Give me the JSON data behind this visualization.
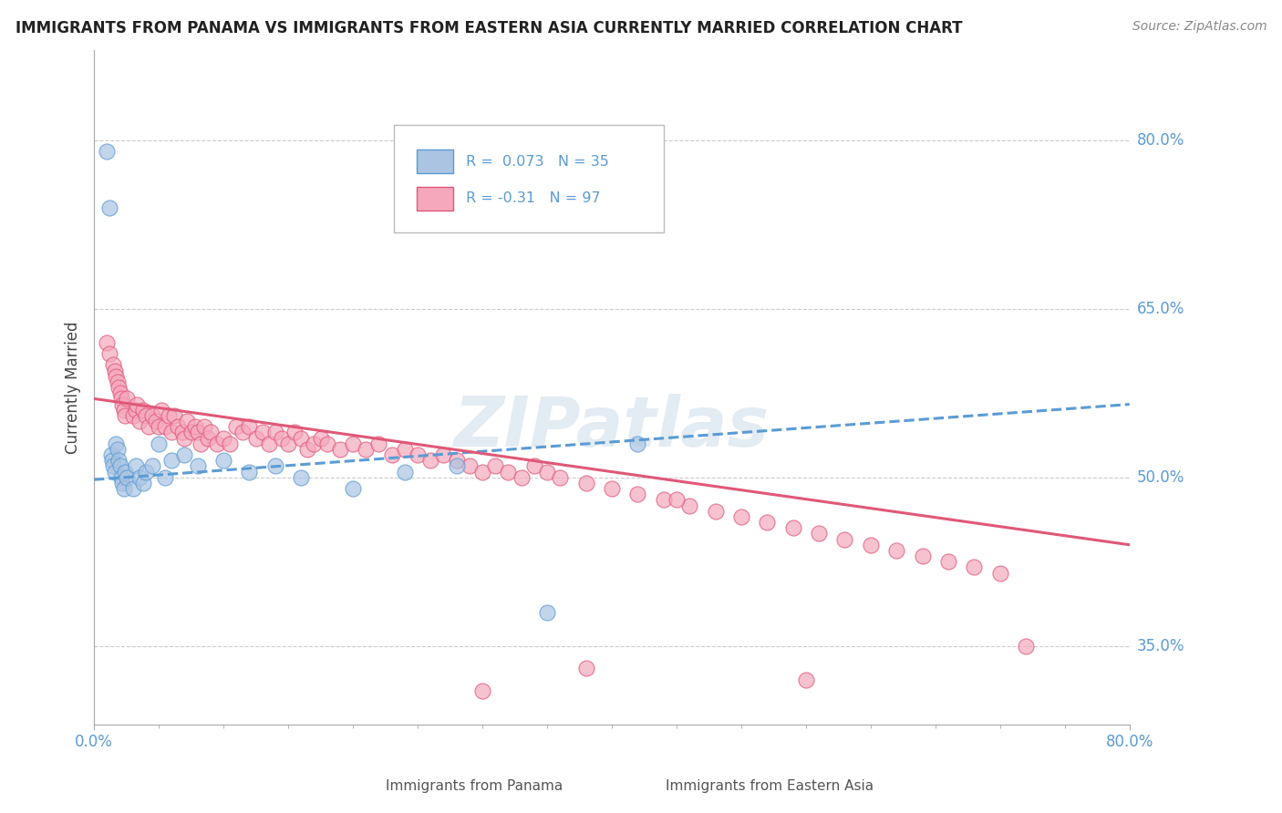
{
  "title": "IMMIGRANTS FROM PANAMA VS IMMIGRANTS FROM EASTERN ASIA CURRENTLY MARRIED CORRELATION CHART",
  "source_text": "Source: ZipAtlas.com",
  "ylabel": "Currently Married",
  "xlim": [
    0.0,
    0.8
  ],
  "ylim": [
    0.28,
    0.88
  ],
  "y_tick_values": [
    0.35,
    0.5,
    0.65,
    0.8
  ],
  "r_panama": 0.073,
  "n_panama": 35,
  "r_eastern_asia": -0.31,
  "n_eastern_asia": 97,
  "color_panama": "#aac4e2",
  "color_eastern_asia": "#f5a8bc",
  "line_color_panama": "#5b9bd5",
  "line_color_eastern_asia": "#e05878",
  "watermark": "ZIPatlas",
  "panama_x": [
    0.01,
    0.012,
    0.013,
    0.014,
    0.015,
    0.016,
    0.017,
    0.018,
    0.019,
    0.02,
    0.021,
    0.022,
    0.023,
    0.024,
    0.025,
    0.03,
    0.032,
    0.035,
    0.038,
    0.04,
    0.045,
    0.05,
    0.055,
    0.06,
    0.07,
    0.08,
    0.1,
    0.12,
    0.14,
    0.16,
    0.2,
    0.24,
    0.28,
    0.35,
    0.42
  ],
  "panama_y": [
    0.79,
    0.74,
    0.52,
    0.515,
    0.51,
    0.505,
    0.53,
    0.525,
    0.515,
    0.51,
    0.5,
    0.495,
    0.49,
    0.505,
    0.5,
    0.49,
    0.51,
    0.5,
    0.495,
    0.505,
    0.51,
    0.53,
    0.5,
    0.515,
    0.52,
    0.51,
    0.515,
    0.505,
    0.51,
    0.5,
    0.49,
    0.505,
    0.51,
    0.38,
    0.53
  ],
  "eastern_asia_x": [
    0.01,
    0.012,
    0.015,
    0.016,
    0.017,
    0.018,
    0.019,
    0.02,
    0.021,
    0.022,
    0.023,
    0.024,
    0.025,
    0.03,
    0.032,
    0.033,
    0.035,
    0.038,
    0.04,
    0.042,
    0.045,
    0.048,
    0.05,
    0.052,
    0.055,
    0.058,
    0.06,
    0.062,
    0.065,
    0.068,
    0.07,
    0.072,
    0.075,
    0.078,
    0.08,
    0.082,
    0.085,
    0.088,
    0.09,
    0.095,
    0.1,
    0.105,
    0.11,
    0.115,
    0.12,
    0.125,
    0.13,
    0.135,
    0.14,
    0.145,
    0.15,
    0.155,
    0.16,
    0.165,
    0.17,
    0.175,
    0.18,
    0.19,
    0.2,
    0.21,
    0.22,
    0.23,
    0.24,
    0.25,
    0.26,
    0.27,
    0.28,
    0.29,
    0.3,
    0.31,
    0.32,
    0.33,
    0.34,
    0.35,
    0.36,
    0.38,
    0.4,
    0.42,
    0.44,
    0.46,
    0.48,
    0.5,
    0.52,
    0.54,
    0.56,
    0.58,
    0.6,
    0.62,
    0.64,
    0.66,
    0.68,
    0.7,
    0.55,
    0.45,
    0.38,
    0.3,
    0.72
  ],
  "eastern_asia_y": [
    0.62,
    0.61,
    0.6,
    0.595,
    0.59,
    0.585,
    0.58,
    0.575,
    0.57,
    0.565,
    0.56,
    0.555,
    0.57,
    0.555,
    0.56,
    0.565,
    0.55,
    0.56,
    0.555,
    0.545,
    0.555,
    0.55,
    0.545,
    0.56,
    0.545,
    0.555,
    0.54,
    0.555,
    0.545,
    0.54,
    0.535,
    0.55,
    0.54,
    0.545,
    0.54,
    0.53,
    0.545,
    0.535,
    0.54,
    0.53,
    0.535,
    0.53,
    0.545,
    0.54,
    0.545,
    0.535,
    0.54,
    0.53,
    0.54,
    0.535,
    0.53,
    0.54,
    0.535,
    0.525,
    0.53,
    0.535,
    0.53,
    0.525,
    0.53,
    0.525,
    0.53,
    0.52,
    0.525,
    0.52,
    0.515,
    0.52,
    0.515,
    0.51,
    0.505,
    0.51,
    0.505,
    0.5,
    0.51,
    0.505,
    0.5,
    0.495,
    0.49,
    0.485,
    0.48,
    0.475,
    0.47,
    0.465,
    0.46,
    0.455,
    0.45,
    0.445,
    0.44,
    0.435,
    0.43,
    0.425,
    0.42,
    0.415,
    0.32,
    0.48,
    0.33,
    0.31,
    0.35
  ],
  "panama_line_x": [
    0.0,
    0.8
  ],
  "panama_line_y": [
    0.498,
    0.565
  ],
  "eastern_line_x": [
    0.0,
    0.8
  ],
  "eastern_line_y": [
    0.57,
    0.44
  ]
}
